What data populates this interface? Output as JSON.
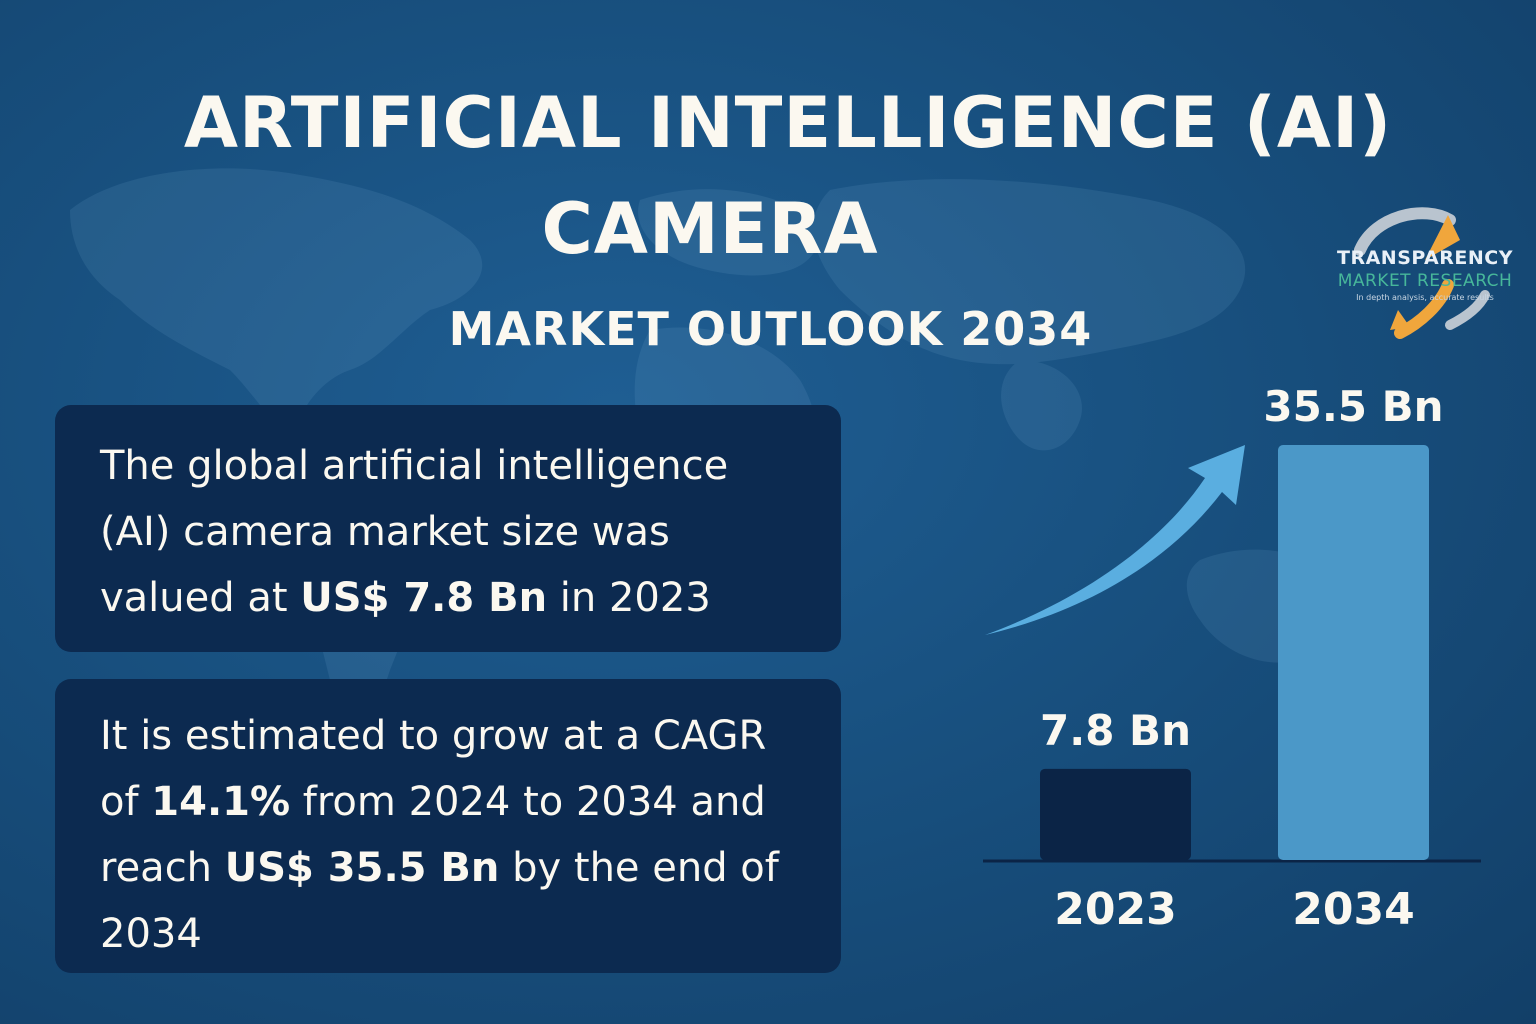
{
  "title_line1": "ARTIFICIAL INTELLIGENCE (AI)",
  "title_line2": "CAMERA",
  "subtitle": "MARKET OUTLOOK 2034",
  "box1": {
    "text_before": "The global artificial intelligence (AI) camera market size was valued at ",
    "highlight": "US$ 7.8 Bn",
    "text_after": " in 2023"
  },
  "box2": {
    "text1": "It is estimated to grow at a CAGR of ",
    "cagr": "14.1%",
    "text2": " from 2024 to 2034 and reach ",
    "value": "US$ 35.5 Bn",
    "text3": " by the end of 2034"
  },
  "logo": {
    "line1": "TRANSPARENCY",
    "line2": "MARKET RESEARCH",
    "line3": "In depth analysis, accurate results"
  },
  "colors": {
    "background": "#18507f",
    "box": "#0c2a50",
    "bar_2023": "#0b2446",
    "bar_2034": "#4b98c8",
    "arrow": "#5aaee0",
    "logo_orange": "#f0a63c",
    "logo_green": "#47b79a"
  },
  "chart_data": {
    "type": "bar",
    "categories": [
      "2023",
      "2034"
    ],
    "values": [
      7.8,
      35.5
    ],
    "value_labels": [
      "7.8 Bn",
      "35.5 Bn"
    ],
    "bar_colors": [
      "#0b2446",
      "#4b98c8"
    ],
    "ylim": [
      0,
      35.5
    ],
    "grid": false,
    "growth_arrow": true
  }
}
